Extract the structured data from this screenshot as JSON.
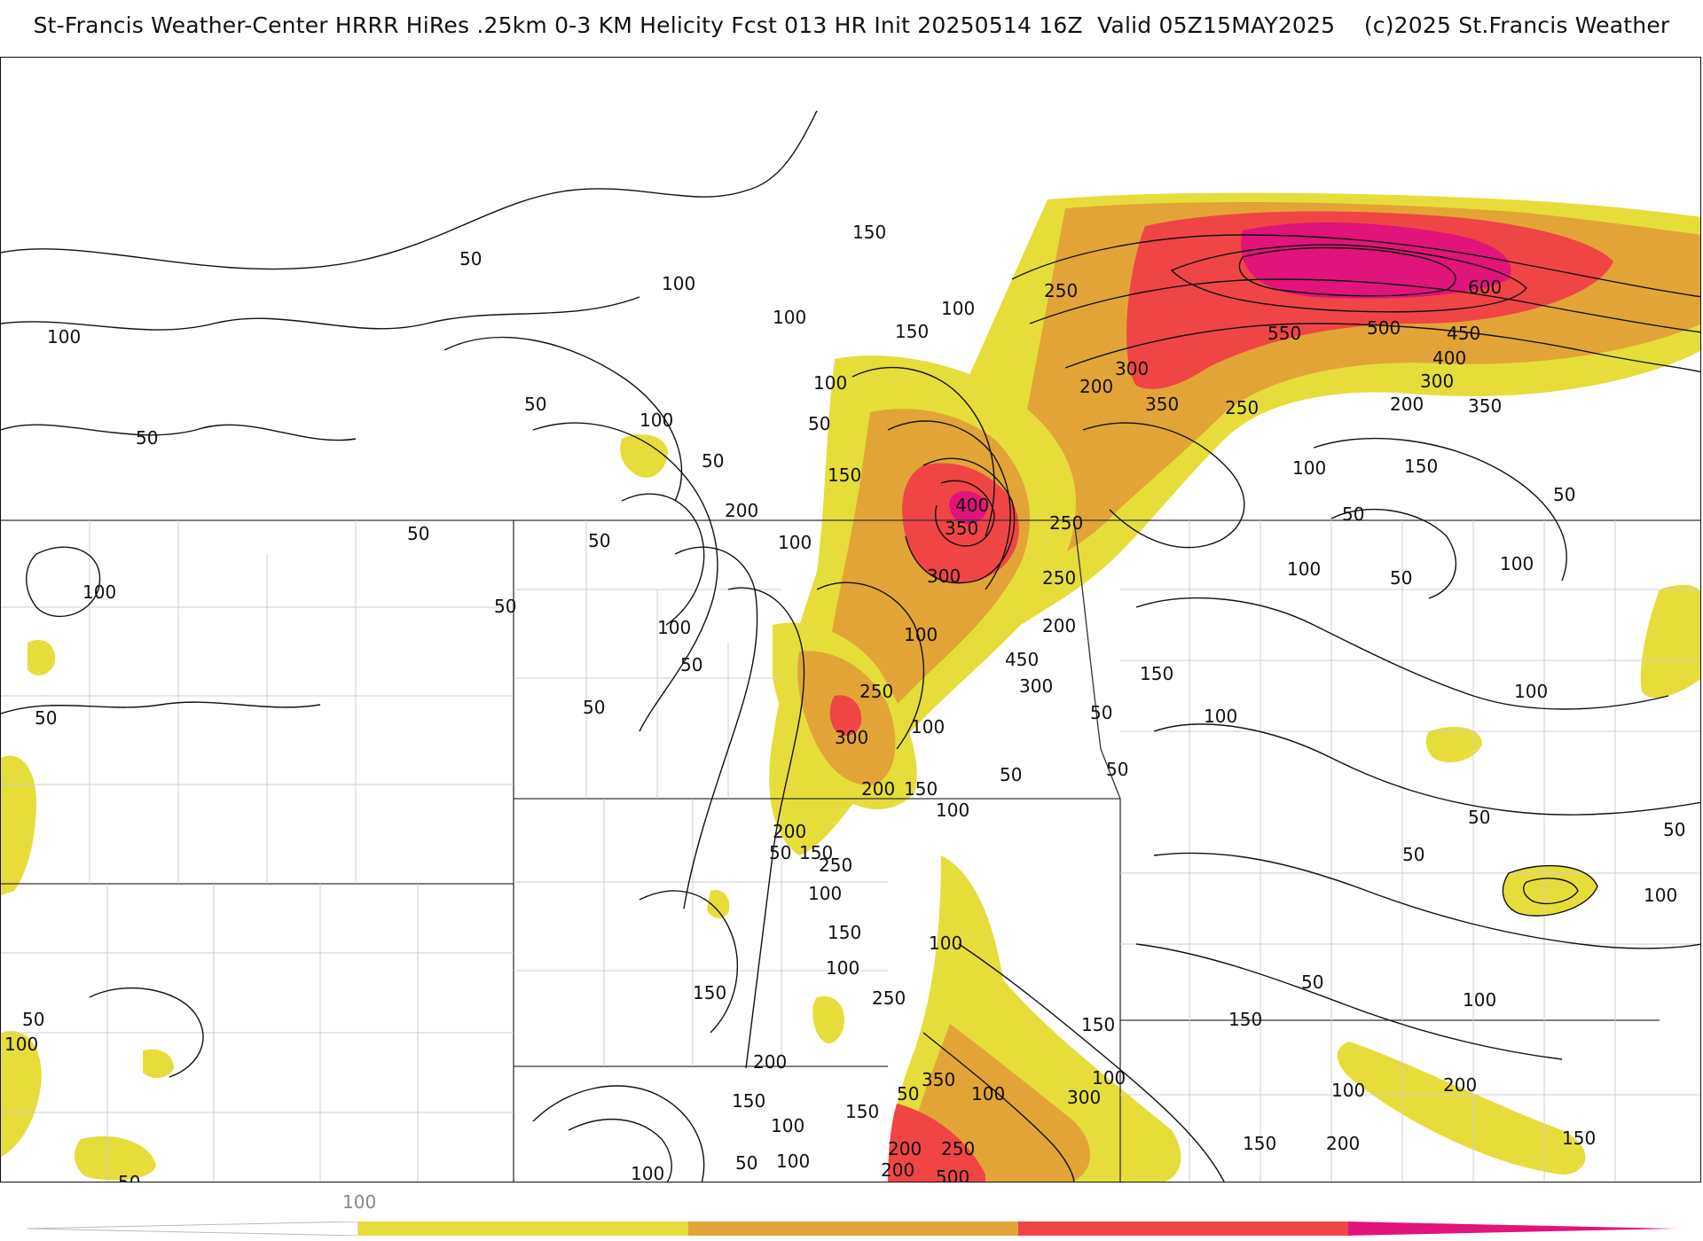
{
  "header": {
    "title": "St-Francis Weather-Center HRRR HiRes .25km 0-3 KM Helicity Fcst 013 HR Init 20250514 16Z  Valid 05Z15MAY2025    (c)2025 St.Francis Weather"
  },
  "colors": {
    "band_150": "#e6dd3a",
    "band_250": "#e2a437",
    "band_350": "#f04545",
    "band_500": "#e0147a",
    "contour": "#111111",
    "borders": "#333333",
    "counties": "#cccccc"
  },
  "colorbar": {
    "tick_label": "100",
    "segments": [
      "#ffffff",
      "#e6dd3a",
      "#e2a437",
      "#f04545",
      "#e0147a"
    ]
  },
  "contour_labels": [
    "50",
    "100",
    "100",
    "100",
    "50",
    "50",
    "100",
    "50",
    "100",
    "150",
    "150",
    "100",
    "50",
    "200",
    "150",
    "50",
    "100",
    "50",
    "100",
    "50",
    "100",
    "50",
    "50",
    "50",
    "100",
    "50",
    "100",
    "250",
    "300",
    "350",
    "400",
    "450",
    "300",
    "250",
    "200",
    "250",
    "300",
    "200",
    "150",
    "100",
    "200",
    "150",
    "250",
    "100",
    "50",
    "150",
    "100",
    "150",
    "100",
    "250",
    "250",
    "300",
    "550",
    "500",
    "600",
    "450",
    "400",
    "300",
    "350",
    "200",
    "250",
    "200",
    "350",
    "150",
    "100",
    "50",
    "100",
    "50",
    "50",
    "100",
    "150",
    "100",
    "50",
    "50",
    "100",
    "50",
    "50",
    "100",
    "50",
    "100",
    "150",
    "100",
    "150",
    "200",
    "150",
    "200",
    "300",
    "350",
    "250",
    "200",
    "50",
    "100",
    "150",
    "100",
    "50",
    "100",
    "150",
    "250",
    "200",
    "500",
    "100",
    "50",
    "50",
    "100",
    "200",
    "50",
    "100",
    "150"
  ],
  "legend": {}
}
